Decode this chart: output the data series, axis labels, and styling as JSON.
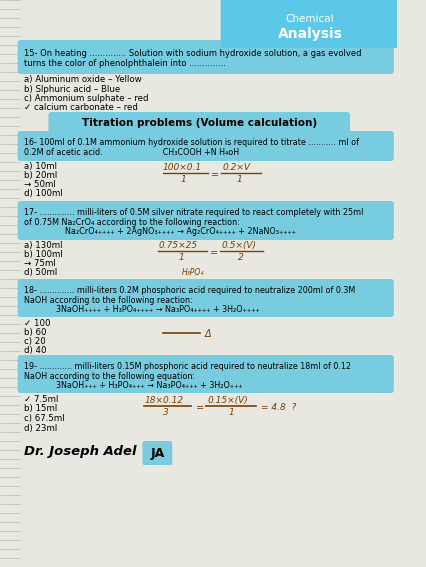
{
  "bg_color": "#e8e8e0",
  "header_bg": "#5bc8e8",
  "box_color": "#78cce0",
  "white_bg": "#f5f5f0",
  "title_line1": "Chemical",
  "title_line2": "Analysis",
  "q15_line1": "15- On heating .............. Solution with sodium hydroxide solution, a gas evolved",
  "q15_line2": "turns the color of phenolphthalein into ..............",
  "q15_options": [
    "a) Aluminum oxide – Yellow",
    "b) Slphuric acid – Blue",
    "c) Ammonium sulphate – red",
    "✓ calcium carbonate – red"
  ],
  "titration_header": "Titration problems (Volume calculation)",
  "q16_line1": "16- 100ml of 0.1M ammonium hydroxide solution is required to titrate ........... ml of",
  "q16_line2": "0.2M of acetic acid.                        CH₃COOH +N H₄oH",
  "q16_options": [
    "a) 10ml",
    "b) 20ml",
    "→ 50ml",
    "d) 100ml"
  ],
  "q17_line1": "17- .............. milli-liters of 0.5M silver nitrate required to react completely with 25ml",
  "q17_line2": "of 0.75M Na₂CrO₄ according to the following reaction:",
  "q17_line3": "Na₂CrO₄₊₊₊₊ + 2AgNO₃₊₊₊₊ → Ag₂CrO₄₊₊₊₊ + 2NaNO₃₊₊₊₊",
  "q17_options": [
    "a) 130ml",
    "b) 100ml",
    "→ 75ml",
    "d) 50ml"
  ],
  "q18_line1": "18- .............. milli-liters 0.2M phosphoric acid required to neutralize 200ml of 0.3M",
  "q18_line2": "NaOH according to the following reaction:",
  "q18_line3": "3NaOH₊₊₊₊ + H₃PO₄₊₊₊₊ → Na₃PO₄₊₊₊₊ + 3H₂O₊₊₊₊",
  "q18_options": [
    "✓ 100",
    "b) 60",
    "c) 20",
    "d) 40"
  ],
  "q19_line1": "19- ............. milli-liters 0.15M phosphoric acid required to neutralize 18ml of 0.12",
  "q19_line2": "NaOH according to the following equation:",
  "q19_line3": "3NaOH₊₊₊ + H₃PO₄₊₊₊ → Na₃PO₄₊₊₊ + 3H₂O₊₊₊",
  "q19_options": [
    "✓ 7.5ml",
    "b) 15ml",
    "c) 67.5ml",
    "d) 23ml"
  ],
  "footer": "Dr. Joseph Adel"
}
